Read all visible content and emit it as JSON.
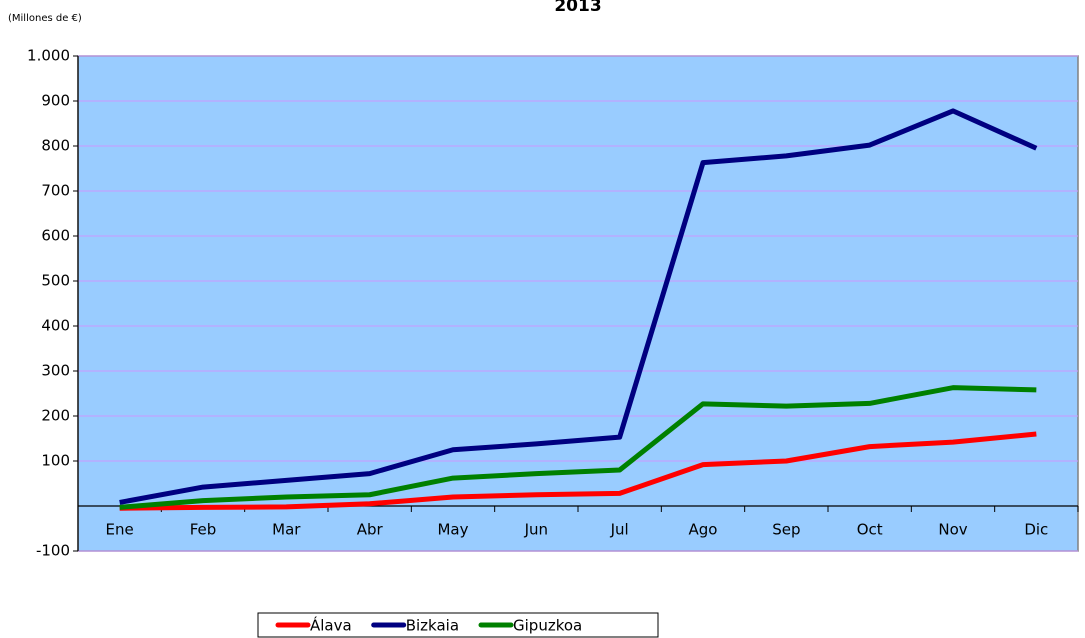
{
  "chart_data": {
    "type": "line",
    "title": "2013",
    "y_label": "(Millones de €)",
    "categories": [
      "Ene",
      "Feb",
      "Mar",
      "Abr",
      "May",
      "Jun",
      "Jul",
      "Ago",
      "Sep",
      "Oct",
      "Nov",
      "Dic"
    ],
    "series": [
      {
        "name": "Álava",
        "color": "#ff0000",
        "values": [
          -5,
          -3,
          -2,
          5,
          20,
          25,
          28,
          92,
          100,
          132,
          142,
          160
        ]
      },
      {
        "name": "Bizkaia",
        "color": "#000080",
        "values": [
          8,
          42,
          57,
          72,
          125,
          138,
          153,
          763,
          778,
          802,
          878,
          795
        ]
      },
      {
        "name": "Gipuzkoa",
        "color": "#008000",
        "values": [
          -3,
          12,
          20,
          25,
          62,
          72,
          80,
          227,
          222,
          228,
          263,
          258
        ]
      }
    ],
    "ylim": [
      -100,
      1000
    ],
    "yticks": [
      -100,
      100,
      200,
      300,
      400,
      500,
      600,
      700,
      800,
      900,
      {
        "value": 1000,
        "label": "1.000"
      }
    ],
    "grid": true,
    "grid_color": "#cc99ff",
    "plot_background": "#99ccff",
    "legend": "bottom"
  }
}
